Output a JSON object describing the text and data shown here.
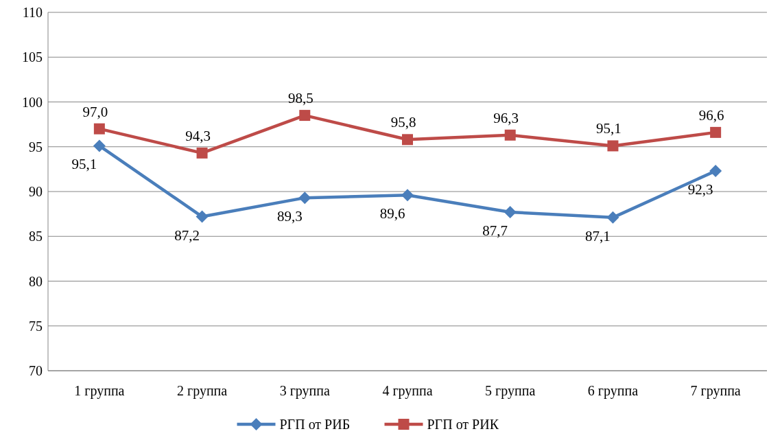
{
  "chart_data": {
    "type": "line",
    "categories": [
      "1 группа",
      "2 группа",
      "3 группа",
      "4 группа",
      "5 группа",
      "6 группа",
      "7 группа"
    ],
    "series": [
      {
        "name": "РГП от РИБ",
        "color": "#4a7ebb",
        "marker": "diamond",
        "values": [
          95.1,
          87.2,
          89.3,
          89.6,
          87.7,
          87.1,
          92.3
        ],
        "value_labels": [
          "95,1",
          "87,2",
          "89,3",
          "89,6",
          "87,7",
          "87,1",
          "92,3"
        ]
      },
      {
        "name": "РГП от РИК",
        "color": "#be4b48",
        "marker": "square",
        "values": [
          97.0,
          94.3,
          98.5,
          95.8,
          96.3,
          95.1,
          96.6
        ],
        "value_labels": [
          "97,0",
          "94,3",
          "98,5",
          "95,8",
          "96,3",
          "95,1",
          "96,6"
        ]
      }
    ],
    "ylim": [
      70,
      110
    ],
    "yticks": [
      70,
      75,
      80,
      85,
      90,
      95,
      100,
      105,
      110
    ],
    "grid": "y",
    "legend": "bottom"
  }
}
